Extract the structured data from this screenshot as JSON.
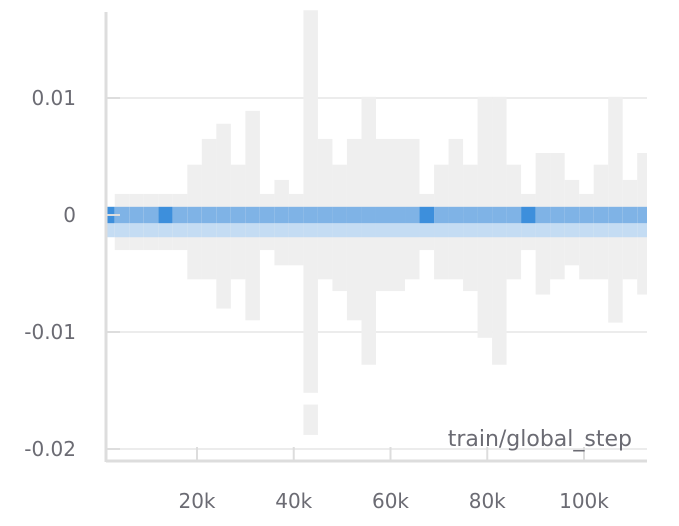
{
  "chart_data": {
    "type": "heatmap",
    "title": "",
    "xlabel": "train/global_step",
    "ylabel": "",
    "xlim": [
      0,
      112000
    ],
    "ylim": [
      -0.021,
      0.0175
    ],
    "x_ticks": [
      {
        "value": 20000,
        "label": "20k"
      },
      {
        "value": 40000,
        "label": "40k"
      },
      {
        "value": 60000,
        "label": "60k"
      },
      {
        "value": 80000,
        "label": "80k"
      },
      {
        "value": 100000,
        "label": "100k"
      }
    ],
    "y_ticks": [
      {
        "value": 0.01,
        "label": "0.01"
      },
      {
        "value": 0,
        "label": "0"
      },
      {
        "value": -0.01,
        "label": "-0.01"
      },
      {
        "value": -0.02,
        "label": "-0.02"
      }
    ],
    "grid": true,
    "colors": {
      "background_bin": "#efefef",
      "dense_bin": "#3d8fdc",
      "mid_bin": "#7fb3e6",
      "light_bin": "#c4dcf3",
      "axis": "#dddddd",
      "grid": "#e6e6e6"
    },
    "bin_width": 3000,
    "center_band": [
      -0.0007,
      0.0007
    ],
    "columns": [
      {
        "x": 0,
        "min": -0.001,
        "max": 0.0007,
        "center": 3
      },
      {
        "x": 3000,
        "min": -0.003,
        "max": 0.0018,
        "center": 2
      },
      {
        "x": 6000,
        "min": -0.003,
        "max": 0.0018,
        "center": 2
      },
      {
        "x": 9000,
        "min": -0.003,
        "max": 0.0018,
        "center": 2
      },
      {
        "x": 12000,
        "min": -0.003,
        "max": 0.0018,
        "center": 3
      },
      {
        "x": 15000,
        "min": -0.003,
        "max": 0.0018,
        "center": 2
      },
      {
        "x": 18000,
        "min": -0.0055,
        "max": 0.0043,
        "center": 2
      },
      {
        "x": 21000,
        "min": -0.0055,
        "max": 0.0065,
        "center": 2
      },
      {
        "x": 24000,
        "min": -0.008,
        "max": 0.0078,
        "center": 2
      },
      {
        "x": 27000,
        "min": -0.0055,
        "max": 0.0043,
        "center": 2
      },
      {
        "x": 30000,
        "min": -0.009,
        "max": 0.0089,
        "center": 2
      },
      {
        "x": 33000,
        "min": -0.003,
        "max": 0.0018,
        "center": 2
      },
      {
        "x": 36000,
        "min": -0.0043,
        "max": 0.003,
        "center": 2
      },
      {
        "x": 39000,
        "min": -0.0043,
        "max": 0.0018,
        "center": 2
      },
      {
        "x": 42000,
        "min": -0.0152,
        "max": 0.0175,
        "center": 2,
        "outlier": [
          -0.0188,
          -0.0162
        ]
      },
      {
        "x": 45000,
        "min": -0.0055,
        "max": 0.0065,
        "center": 2
      },
      {
        "x": 48000,
        "min": -0.0065,
        "max": 0.0043,
        "center": 2
      },
      {
        "x": 51000,
        "min": -0.009,
        "max": 0.0065,
        "center": 2
      },
      {
        "x": 54000,
        "min": -0.0128,
        "max": 0.0101,
        "center": 2
      },
      {
        "x": 57000,
        "min": -0.0065,
        "max": 0.0065,
        "center": 2
      },
      {
        "x": 60000,
        "min": -0.0065,
        "max": 0.0065,
        "center": 2
      },
      {
        "x": 63000,
        "min": -0.0055,
        "max": 0.0065,
        "center": 2
      },
      {
        "x": 66000,
        "min": -0.003,
        "max": 0.0018,
        "center": 3
      },
      {
        "x": 69000,
        "min": -0.0055,
        "max": 0.0043,
        "center": 2
      },
      {
        "x": 72000,
        "min": -0.0055,
        "max": 0.0065,
        "center": 2
      },
      {
        "x": 75000,
        "min": -0.0065,
        "max": 0.0043,
        "center": 2
      },
      {
        "x": 78000,
        "min": -0.0105,
        "max": 0.0101,
        "center": 2
      },
      {
        "x": 81000,
        "min": -0.0128,
        "max": 0.0101,
        "center": 2
      },
      {
        "x": 84000,
        "min": -0.0055,
        "max": 0.0043,
        "center": 2
      },
      {
        "x": 87000,
        "min": -0.003,
        "max": 0.0018,
        "center": 3
      },
      {
        "x": 90000,
        "min": -0.0068,
        "max": 0.0053,
        "center": 2
      },
      {
        "x": 93000,
        "min": -0.0055,
        "max": 0.0053,
        "center": 2
      },
      {
        "x": 96000,
        "min": -0.0043,
        "max": 0.003,
        "center": 2
      },
      {
        "x": 99000,
        "min": -0.0055,
        "max": 0.0018,
        "center": 2
      },
      {
        "x": 102000,
        "min": -0.0055,
        "max": 0.0043,
        "center": 2
      },
      {
        "x": 105000,
        "min": -0.0092,
        "max": 0.0101,
        "center": 2
      },
      {
        "x": 108000,
        "min": -0.0055,
        "max": 0.003,
        "center": 2
      },
      {
        "x": 111000,
        "min": -0.0068,
        "max": 0.0053,
        "center": 2
      }
    ]
  }
}
